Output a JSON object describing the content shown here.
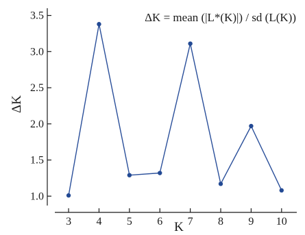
{
  "chart_data": {
    "type": "line",
    "title": "",
    "annotation": "ΔK = mean (|L*(K)|) / sd (L(K))",
    "xlabel": "K",
    "ylabel": "ΔK",
    "x": [
      3,
      4,
      5,
      6,
      7,
      8,
      9,
      10
    ],
    "series": [
      {
        "values": [
          1.01,
          3.38,
          1.29,
          1.32,
          3.11,
          1.17,
          1.97,
          1.08
        ]
      }
    ],
    "xticks": [
      "3",
      "4",
      "5",
      "6",
      "7",
      "8",
      "9",
      "10"
    ],
    "yticks": [
      "1.0",
      "1.5",
      "2.0",
      "2.5",
      "3.0",
      "3.5"
    ],
    "xlim": [
      2.3,
      10.5
    ],
    "ylim": [
      0.87,
      3.6
    ],
    "grid": false,
    "colors": {
      "line": "#2a4f9a",
      "marker": "#234a94",
      "axis": "#1a1a1a"
    }
  }
}
